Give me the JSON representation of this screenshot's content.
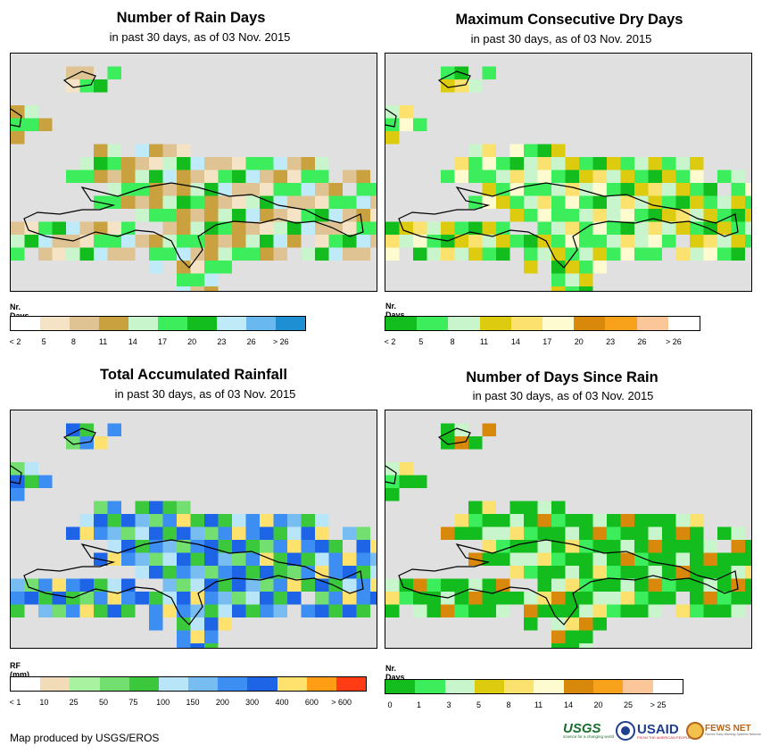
{
  "credit": "Map produced by USGS/EROS",
  "logos": {
    "usgs": "USGS",
    "usgs_tag": "science for a changing world",
    "usaid": "USAID",
    "usaid_tag": "FROM THE AMERICAN PEOPLE",
    "fews": "FEWS NET",
    "fews_tag": "Famine Early Warning Systems Network"
  },
  "panels": [
    {
      "title": "Number of Rain Days",
      "subtitle": "in past 30 days, as of 03 Nov. 2015",
      "legend_title": "Nr. Days",
      "legend_labels": [
        "< 2",
        "5",
        "8",
        "11",
        "14",
        "17",
        "20",
        "23",
        "26",
        "> 26"
      ],
      "legend_colors": [
        "#ffffff",
        "#f5e3c6",
        "#dfc393",
        "#c9a23f",
        "#c9f5cc",
        "#3cee5c",
        "#14bd1e",
        "#bfeaf7",
        "#69b8ee",
        "#1e8fd2"
      ]
    },
    {
      "title": "Maximum Consecutive Dry Days",
      "subtitle": "in past 30 days, as of 03 Nov. 2015",
      "legend_title": "Nr. Days",
      "legend_labels": [
        "< 2",
        "5",
        "8",
        "11",
        "14",
        "17",
        "20",
        "23",
        "26",
        "> 26"
      ],
      "legend_colors": [
        "#14bd1e",
        "#3cee5c",
        "#c9f5cc",
        "#dccb0e",
        "#fbe26e",
        "#fefbd0",
        "#d8890c",
        "#f7a21a",
        "#fbc698",
        "#ffffff"
      ]
    },
    {
      "title": "Total Accumulated Rainfall",
      "subtitle": "in past 30 days, as of 03 Nov. 2015",
      "legend_title": "RF (mm)",
      "legend_labels": [
        "< 1",
        "10",
        "25",
        "50",
        "75",
        "100",
        "150",
        "200",
        "300",
        "400",
        "600",
        "> 600"
      ],
      "legend_colors": [
        "#ffffff",
        "#f2dcb8",
        "#a9f2a0",
        "#72df70",
        "#3cc83c",
        "#b8e6f8",
        "#78bdf2",
        "#3c8ef2",
        "#1e64e6",
        "#ffe16e",
        "#ff9e14",
        "#ff3c14"
      ]
    },
    {
      "title": "Number of Days Since Rain",
      "subtitle": "in past 30 days, as of 03 Nov. 2015",
      "legend_title": "Nr. Days",
      "legend_labels": [
        "0",
        "1",
        "3",
        "5",
        "8",
        "11",
        "14",
        "20",
        "25",
        "> 25"
      ],
      "legend_colors": [
        "#14bd1e",
        "#3cee5c",
        "#c9f5cc",
        "#dccb0e",
        "#fbe26e",
        "#fefbd0",
        "#d8890c",
        "#f7a21a",
        "#fbc698",
        "#ffffff"
      ]
    }
  ]
}
